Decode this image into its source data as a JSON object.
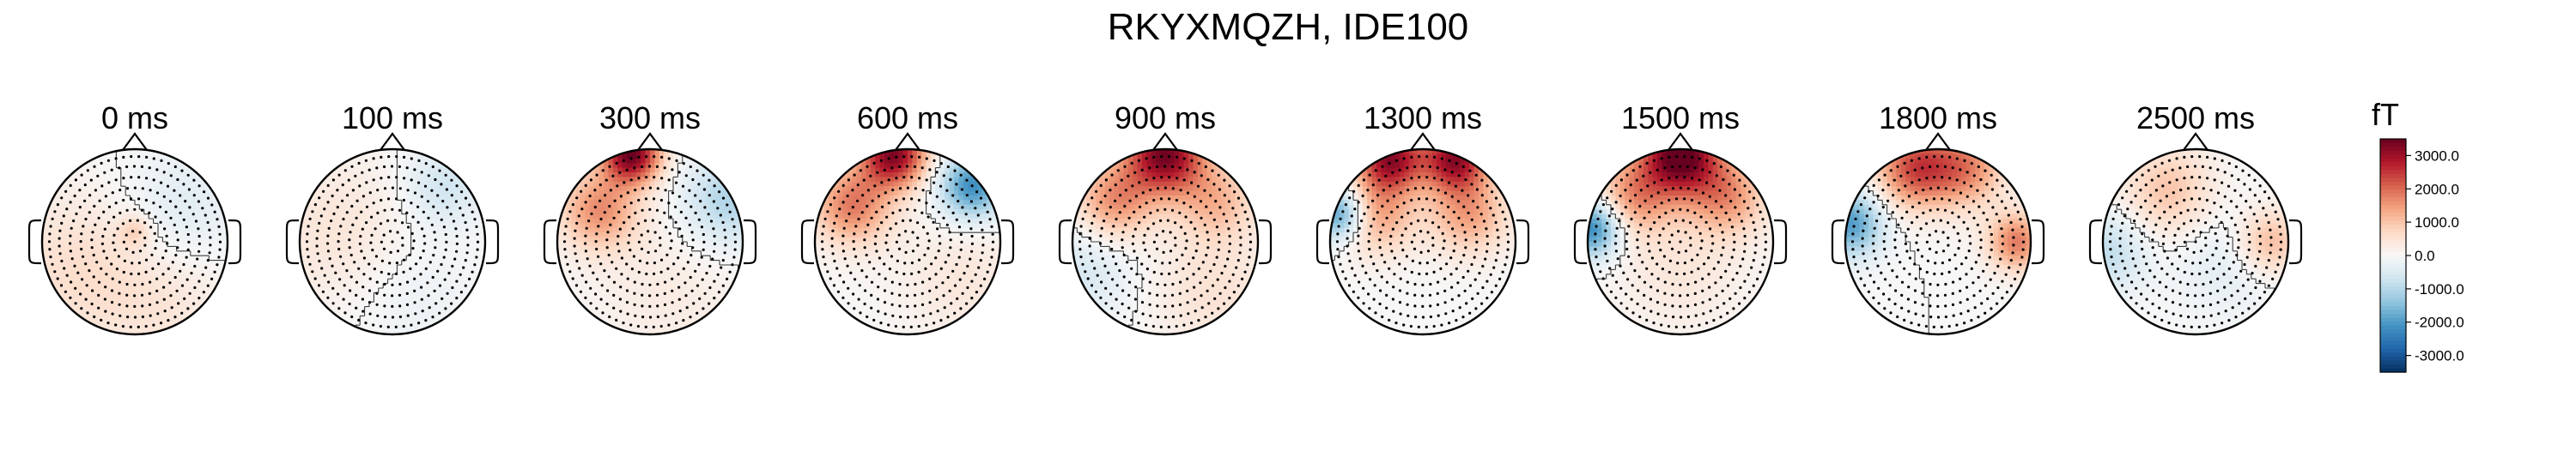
{
  "figure": {
    "title": "RKYXMQZH, IDE100"
  },
  "colors": {
    "colormap": [
      "#053061",
      "#2166ac",
      "#4393c3",
      "#92c5de",
      "#d1e5f0",
      "#f7f7f7",
      "#fddbc7",
      "#f4a582",
      "#d6604d",
      "#b2182b",
      "#67001f"
    ],
    "outline": "#000000",
    "sensor": "#000000"
  },
  "chart_data": {
    "type": "topomap",
    "vmin": -3500,
    "vmax": 3500,
    "colorbar": {
      "unit_label": "fT",
      "ticks": [
        "3000.0",
        "2000.0",
        "1000.0",
        "0.0",
        "-1000.0",
        "-2000.0",
        "-3000.0"
      ],
      "tick_values": [
        3000,
        2000,
        1000,
        0,
        -1000,
        -2000,
        -3000
      ]
    },
    "maps": [
      {
        "label": "0 ms",
        "sources": [
          {
            "x": 0.0,
            "y": 0.12,
            "amp": 700,
            "s": 0.12
          },
          {
            "x": -0.6,
            "y": -0.3,
            "amp": 600,
            "s": 0.6
          },
          {
            "x": 0.5,
            "y": 0.35,
            "amp": -450,
            "s": 0.45
          },
          {
            "x": 0.4,
            "y": -0.7,
            "amp": 350,
            "s": 0.5
          }
        ]
      },
      {
        "label": "100 ms",
        "sources": [
          {
            "x": 0.55,
            "y": 0.6,
            "amp": -700,
            "s": 0.3
          },
          {
            "x": -0.6,
            "y": 0.1,
            "amp": 450,
            "s": 0.6
          },
          {
            "x": 0.2,
            "y": -0.6,
            "amp": -250,
            "s": 0.5
          }
        ]
      },
      {
        "label": "300 ms",
        "sources": [
          {
            "x": -0.2,
            "y": 0.95,
            "amp": 3400,
            "s": 0.22
          },
          {
            "x": -0.55,
            "y": 0.35,
            "amp": 1600,
            "s": 0.3
          },
          {
            "x": 0.85,
            "y": 0.45,
            "amp": -1100,
            "s": 0.35
          },
          {
            "x": 0.2,
            "y": -0.55,
            "amp": 300,
            "s": 0.6
          }
        ]
      },
      {
        "label": "600 ms",
        "sources": [
          {
            "x": -0.15,
            "y": 0.95,
            "amp": 3200,
            "s": 0.25
          },
          {
            "x": -0.6,
            "y": 0.4,
            "amp": 1800,
            "s": 0.3
          },
          {
            "x": 0.7,
            "y": 0.6,
            "amp": -2200,
            "s": 0.25
          },
          {
            "x": 0.6,
            "y": -0.4,
            "amp": 400,
            "s": 0.5
          }
        ]
      },
      {
        "label": "900 ms",
        "sources": [
          {
            "x": 0.0,
            "y": 0.95,
            "amp": 3300,
            "s": 0.3
          },
          {
            "x": -0.55,
            "y": 0.45,
            "amp": 1600,
            "s": 0.3
          },
          {
            "x": 0.55,
            "y": 0.45,
            "amp": 1100,
            "s": 0.3
          },
          {
            "x": -0.9,
            "y": -0.3,
            "amp": -600,
            "s": 0.4
          },
          {
            "x": 0.5,
            "y": -0.5,
            "amp": 500,
            "s": 0.5
          }
        ]
      },
      {
        "label": "1300 ms",
        "sources": [
          {
            "x": -0.35,
            "y": 0.9,
            "amp": 3000,
            "s": 0.25
          },
          {
            "x": 0.35,
            "y": 0.9,
            "amp": 3000,
            "s": 0.25
          },
          {
            "x": -0.5,
            "y": 0.3,
            "amp": 1400,
            "s": 0.3
          },
          {
            "x": 0.5,
            "y": 0.3,
            "amp": 1400,
            "s": 0.3
          },
          {
            "x": -0.9,
            "y": 0.3,
            "amp": -2200,
            "s": 0.2
          }
        ]
      },
      {
        "label": "1500 ms",
        "sources": [
          {
            "x": 0.0,
            "y": 0.95,
            "amp": 3600,
            "s": 0.3
          },
          {
            "x": -0.5,
            "y": 0.5,
            "amp": 1500,
            "s": 0.3
          },
          {
            "x": 0.5,
            "y": 0.5,
            "amp": 1500,
            "s": 0.3
          },
          {
            "x": -0.95,
            "y": 0.15,
            "amp": -2400,
            "s": 0.22
          },
          {
            "x": 0.0,
            "y": -0.3,
            "amp": 400,
            "s": 0.5
          }
        ]
      },
      {
        "label": "1800 ms",
        "sources": [
          {
            "x": -0.25,
            "y": 0.8,
            "amp": 2200,
            "s": 0.3
          },
          {
            "x": 0.3,
            "y": 0.8,
            "amp": 1600,
            "s": 0.3
          },
          {
            "x": 0.85,
            "y": 0.0,
            "amp": 1800,
            "s": 0.22
          },
          {
            "x": -0.95,
            "y": 0.2,
            "amp": -2000,
            "s": 0.25
          }
        ]
      },
      {
        "label": "2500 ms",
        "sources": [
          {
            "x": -0.3,
            "y": 0.55,
            "amp": 1000,
            "s": 0.35
          },
          {
            "x": 0.8,
            "y": 0.0,
            "amp": 1200,
            "s": 0.25
          },
          {
            "x": -0.95,
            "y": -0.1,
            "amp": -900,
            "s": 0.3
          },
          {
            "x": 0.35,
            "y": -0.2,
            "amp": -400,
            "s": 0.4
          }
        ]
      }
    ]
  }
}
